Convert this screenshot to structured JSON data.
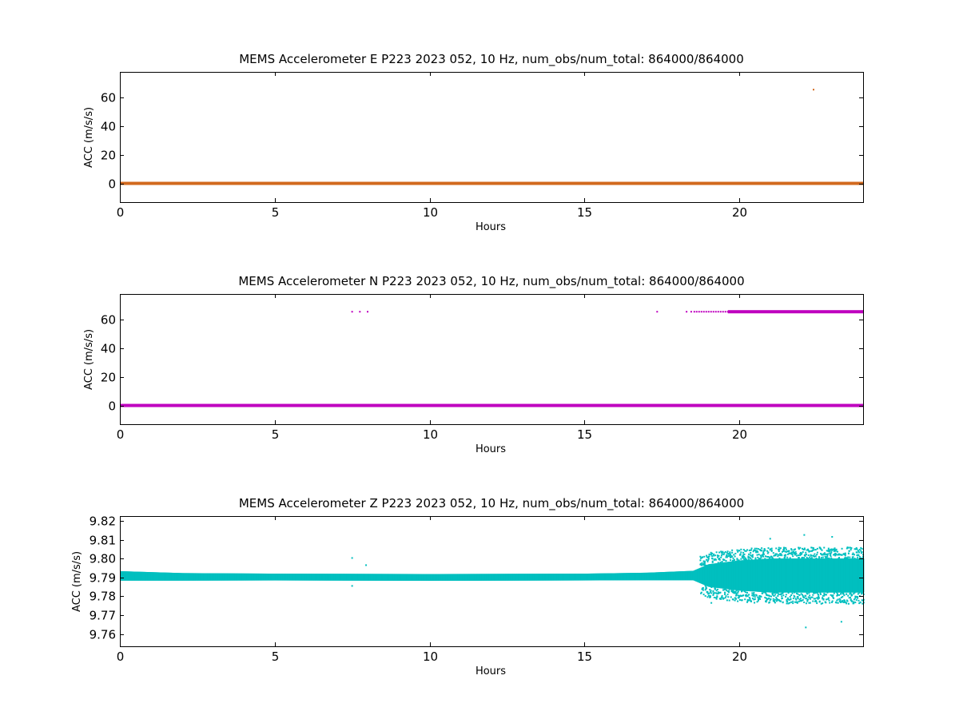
{
  "chart_data": [
    {
      "type": "scatter",
      "title": "MEMS Accelerometer E P223 2023 052, 10 Hz, num_obs/num_total: 864000/864000",
      "xlabel": "Hours",
      "ylabel": "ACC (m/s/s)",
      "xlim": [
        0,
        24
      ],
      "ylim": [
        -13,
        78
      ],
      "xticks": [
        0,
        5,
        10,
        15,
        20
      ],
      "yticks": [
        0,
        20,
        40,
        60
      ],
      "tick_decimals": 0,
      "grid": false,
      "color": "#d2691e",
      "series": [
        {
          "x_range": [
            0,
            24
          ],
          "y_constant": 0.1,
          "outliers": [
            {
              "x": 22.4,
              "y": 65.6
            }
          ]
        }
      ]
    },
    {
      "type": "scatter",
      "title": "MEMS Accelerometer N P223 2023 052, 10 Hz, num_obs/num_total: 864000/864000",
      "xlabel": "Hours",
      "ylabel": "ACC (m/s/s)",
      "xlim": [
        0,
        24
      ],
      "ylim": [
        -13,
        78
      ],
      "xticks": [
        0,
        5,
        10,
        15,
        20
      ],
      "yticks": [
        0,
        20,
        40,
        60
      ],
      "tick_decimals": 0,
      "grid": false,
      "color": "#bf00bf",
      "series": [
        {
          "x_range": [
            0,
            24
          ],
          "y_constant": 0.1,
          "outliers": [
            {
              "x": 7.5,
              "y": 65.6
            },
            {
              "x": 7.75,
              "y": 65.6
            },
            {
              "x": 8.0,
              "y": 65.6
            },
            {
              "x": 17.35,
              "y": 65.6
            },
            {
              "x": 18.3,
              "y": 65.6
            },
            {
              "x": 18.45,
              "y": 65.6
            },
            {
              "x": 18.55,
              "y": 65.6
            }
          ],
          "upper_band": {
            "x_range": [
              18.6,
              24
            ],
            "y": 65.6
          }
        }
      ]
    },
    {
      "type": "scatter",
      "title": "MEMS Accelerometer Z P223 2023 052, 10 Hz, num_obs/num_total: 864000/864000",
      "xlabel": "Hours",
      "ylabel": "ACC (m/s/s)",
      "xlim": [
        0,
        24
      ],
      "ylim": [
        9.7535,
        9.8225
      ],
      "xticks": [
        0,
        5,
        10,
        15,
        20
      ],
      "yticks": [
        9.76,
        9.77,
        9.78,
        9.79,
        9.8,
        9.81,
        9.82
      ],
      "tick_decimals": 2,
      "grid": false,
      "color": "#00bfbf",
      "series": [
        {
          "envelope": [
            {
              "x": 0,
              "center": 9.7908,
              "half_width": 0.0025
            },
            {
              "x": 2,
              "center": 9.7903,
              "half_width": 0.002
            },
            {
              "x": 5,
              "center": 9.7902,
              "half_width": 0.0018
            },
            {
              "x": 10,
              "center": 9.79,
              "half_width": 0.0018
            },
            {
              "x": 15,
              "center": 9.7902,
              "half_width": 0.0018
            },
            {
              "x": 17,
              "center": 9.7905,
              "half_width": 0.002
            },
            {
              "x": 18.5,
              "center": 9.791,
              "half_width": 0.0025
            },
            {
              "x": 19,
              "center": 9.791,
              "half_width": 0.006
            },
            {
              "x": 20,
              "center": 9.791,
              "half_width": 0.008
            },
            {
              "x": 21,
              "center": 9.791,
              "half_width": 0.009
            },
            {
              "x": 22,
              "center": 9.791,
              "half_width": 0.009
            },
            {
              "x": 23,
              "center": 9.791,
              "half_width": 0.009
            },
            {
              "x": 24,
              "center": 9.791,
              "half_width": 0.009
            }
          ],
          "outliers": [
            {
              "x": 7.5,
              "y": 9.8003
            },
            {
              "x": 7.5,
              "y": 9.7855
            },
            {
              "x": 7.95,
              "y": 9.7965
            },
            {
              "x": 22.1,
              "y": 9.8125
            },
            {
              "x": 22.15,
              "y": 9.7635
            },
            {
              "x": 23.3,
              "y": 9.7665
            },
            {
              "x": 23.0,
              "y": 9.8115
            },
            {
              "x": 21.0,
              "y": 9.8105
            },
            {
              "x": 19.1,
              "y": 9.7765
            }
          ]
        }
      ]
    }
  ]
}
